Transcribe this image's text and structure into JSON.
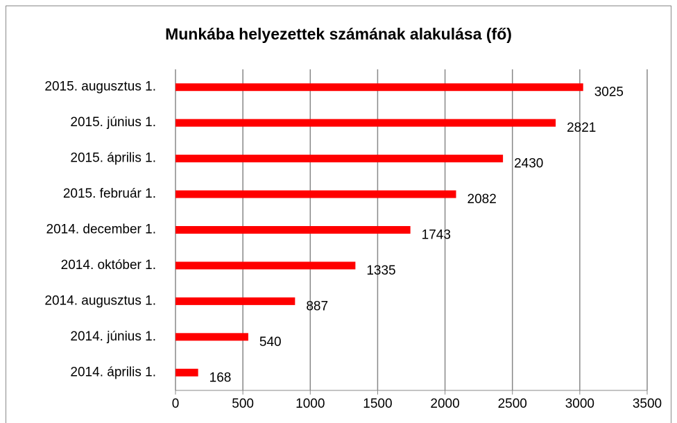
{
  "chart_data": {
    "type": "bar",
    "orientation": "horizontal",
    "title": "Munkába helyezettek számának alakulása (fő)",
    "categories": [
      "2014. április 1.",
      "2014. június 1.",
      "2014. augusztus 1.",
      "2014. október 1.",
      "2014. december 1.",
      "2015. február 1.",
      "2015. április 1.",
      "2015. június 1.",
      "2015. augusztus 1."
    ],
    "values": [
      168,
      540,
      887,
      1335,
      1743,
      2082,
      2430,
      2821,
      3025
    ],
    "color": "#ff0000",
    "xlim": [
      0,
      3500
    ],
    "xticks": [
      0,
      500,
      1000,
      1500,
      2000,
      2500,
      3000,
      3500
    ],
    "grid": true
  }
}
